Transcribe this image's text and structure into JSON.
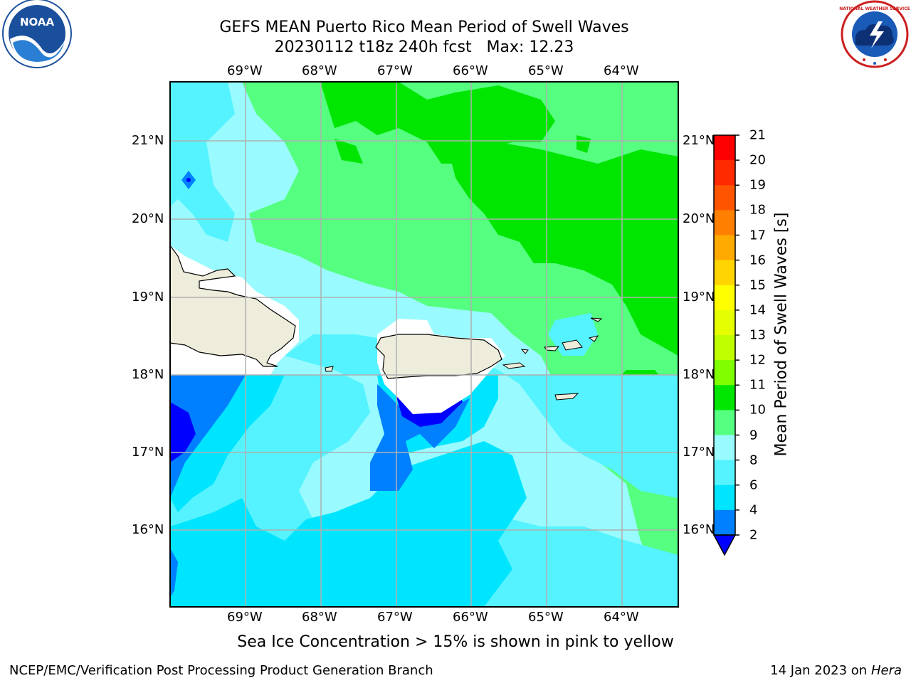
{
  "title": {
    "line1": "GEFS MEAN Puerto Rico Mean Period of Swell Waves",
    "line2": "20230112 t18z 240h fcst   Max: 12.23"
  },
  "map": {
    "lon_ticks": [
      "69°W",
      "68°W",
      "67°W",
      "66°W",
      "65°W",
      "64°W"
    ],
    "lat_ticks": [
      "21°N",
      "20°N",
      "19°N",
      "18°N",
      "17°N",
      "16°N"
    ],
    "colors": {
      "land": "#eeecdb",
      "c2_4": "#0080ff",
      "c4_6": "#00e5ff",
      "c6_8": "#55f3ff",
      "c8_9": "#99fbff",
      "c9_10": "#55ff80",
      "c10_11": "#00e600",
      "below_2": "#0000ff"
    }
  },
  "colorbar": {
    "label": "Mean Period of Swell Waves [s]",
    "ticks": [
      "21",
      "20",
      "19",
      "18",
      "17",
      "16",
      "15",
      "14",
      "13",
      "12",
      "11",
      "10",
      "9",
      "8",
      "6",
      "4",
      "2"
    ],
    "colors": [
      "#ff0000",
      "#ff2a00",
      "#ff5500",
      "#ff8000",
      "#ffaa00",
      "#ffd400",
      "#ffff00",
      "#e6ff00",
      "#c0ff00",
      "#80ff00",
      "#00e600",
      "#55ff80",
      "#99fbff",
      "#55f3ff",
      "#00e5ff",
      "#0080ff"
    ],
    "extend_color": "#0000ff"
  },
  "ice_note": "Sea Ice Concentration > 15% is shown in pink to yellow",
  "footer": {
    "left": "NCEP/EMC/Verification Post Processing Product Generation Branch",
    "right_date": "14 Jan 2023 on ",
    "right_host": "Hera"
  },
  "logos": {
    "noaa_text": "NOAA",
    "nws_text": "NATIONAL WEATHER SERVICE"
  }
}
